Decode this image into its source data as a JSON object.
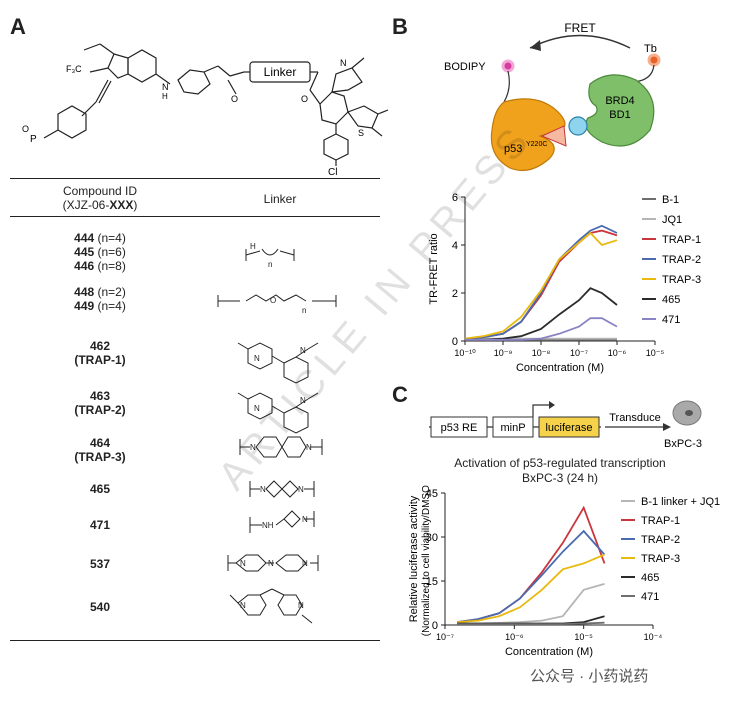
{
  "panels": {
    "a": "A",
    "b": "B",
    "c": "C"
  },
  "structure": {
    "linker_box": "Linker",
    "cf3": "F₃C",
    "p_label": "P",
    "o_label": "O",
    "cl_label": "Cl",
    "nh": "N",
    "h": "H",
    "o": "O",
    "n": "N",
    "s": "S"
  },
  "table": {
    "header_compound": "Compound ID",
    "header_compound_sub_prefix": "(XJZ-06-",
    "header_compound_sub_bold": "XXX",
    "header_compound_sub_suffix": ")",
    "header_linker": "Linker",
    "rows": [
      {
        "lines": [
          [
            "444",
            " (n=4)"
          ],
          [
            "445",
            " (n=6)"
          ],
          [
            "446",
            " (n=8)"
          ]
        ]
      },
      {
        "lines": [
          [
            "448",
            " (n=2)"
          ],
          [
            "449",
            " (n=4)"
          ]
        ]
      },
      {
        "lines": [
          [
            "462",
            ""
          ],
          [
            "(TRAP-1)",
            ""
          ]
        ]
      },
      {
        "lines": [
          [
            "463",
            ""
          ],
          [
            "(TRAP-2)",
            ""
          ]
        ]
      },
      {
        "lines": [
          [
            "464",
            ""
          ],
          [
            "(TRAP-3)",
            ""
          ]
        ]
      },
      {
        "lines": [
          [
            "465",
            ""
          ]
        ]
      },
      {
        "lines": [
          [
            "471",
            ""
          ]
        ]
      },
      {
        "lines": [
          [
            "537",
            ""
          ]
        ]
      },
      {
        "lines": [
          [
            "540",
            ""
          ]
        ]
      }
    ],
    "linker_texts": {
      "alkyl_n": "n",
      "peg_n": "n",
      "h": "H",
      "n": "N",
      "o": "O",
      "nh": "NH"
    }
  },
  "schematic_b": {
    "fret": "FRET",
    "bodipy": "BODIPY",
    "tb": "Tb",
    "brd4": "BRD4",
    "bd1": "BD1",
    "p53": "p53",
    "p53_sup": "Y220C"
  },
  "schematic_c": {
    "p53re": "p53 RE",
    "minp": "minP",
    "luciferase": "luciferase",
    "transduce": "Transduce",
    "cell": "BxPC-3",
    "title_line1": "Activation of p53-regulated transcription",
    "title_line2": "BxPC-3 (24 h)"
  },
  "chart_data": [
    {
      "type": "line",
      "ylabel": "TR-FRET ratio",
      "xlabel": "Concentration (M)",
      "x_scale": "log",
      "xlim": [
        1e-10,
        1e-05
      ],
      "ylim": [
        0,
        6
      ],
      "x_ticks": [
        "10⁻¹⁰",
        "10⁻⁹",
        "10⁻⁸",
        "10⁻⁷",
        "10⁻⁶",
        "10⁻⁵"
      ],
      "y_ticks": [
        0,
        2,
        4,
        6
      ],
      "legend_position": "right",
      "series": [
        {
          "name": "B-1",
          "color": "#6e6e6e",
          "x": [
            1e-10,
            3e-10,
            1e-09,
            3e-09,
            1e-08,
            3e-08,
            1e-07,
            2e-07,
            4e-07,
            1e-06
          ],
          "values": [
            0.05,
            0.05,
            0.05,
            0.05,
            0.05,
            0.05,
            0.05,
            0.05,
            0.05,
            0.05
          ]
        },
        {
          "name": "JQ1",
          "color": "#b5b5b5",
          "x": [
            1e-10,
            3e-10,
            1e-09,
            3e-09,
            1e-08,
            3e-08,
            1e-07,
            2e-07,
            4e-07,
            1e-06
          ],
          "values": [
            0.1,
            0.1,
            0.1,
            0.1,
            0.1,
            0.1,
            0.1,
            0.1,
            0.1,
            0.1
          ]
        },
        {
          "name": "TRAP-1",
          "color": "#c9363b",
          "x": [
            1e-10,
            3e-10,
            1e-09,
            3e-09,
            1e-08,
            3e-08,
            1e-07,
            2e-07,
            4e-07,
            1e-06
          ],
          "values": [
            0.1,
            0.15,
            0.3,
            0.8,
            1.9,
            3.3,
            4.1,
            4.5,
            4.6,
            4.4
          ]
        },
        {
          "name": "TRAP-2",
          "color": "#4a6bb0",
          "x": [
            1e-10,
            3e-10,
            1e-09,
            3e-09,
            1e-08,
            3e-08,
            1e-07,
            2e-07,
            4e-07,
            1e-06
          ],
          "values": [
            0.1,
            0.15,
            0.3,
            0.8,
            2.0,
            3.4,
            4.2,
            4.6,
            4.8,
            4.5
          ]
        },
        {
          "name": "TRAP-3",
          "color": "#e8b90f",
          "x": [
            1e-10,
            3e-10,
            1e-09,
            3e-09,
            1e-08,
            3e-08,
            1e-07,
            2e-07,
            4e-07,
            1e-06
          ],
          "values": [
            0.1,
            0.2,
            0.4,
            1.0,
            2.1,
            3.4,
            4.1,
            4.5,
            4.0,
            4.2
          ]
        },
        {
          "name": "465",
          "color": "#2b2b2b",
          "x": [
            1e-10,
            3e-10,
            1e-09,
            3e-09,
            1e-08,
            3e-08,
            1e-07,
            2e-07,
            4e-07,
            1e-06
          ],
          "values": [
            0.05,
            0.05,
            0.1,
            0.2,
            0.5,
            1.1,
            1.7,
            2.2,
            2.0,
            1.5
          ]
        },
        {
          "name": "471",
          "color": "#8a84c4",
          "x": [
            1e-10,
            3e-10,
            1e-09,
            3e-09,
            1e-08,
            3e-08,
            1e-07,
            2e-07,
            4e-07,
            1e-06
          ],
          "values": [
            0.05,
            0.05,
            0.05,
            0.05,
            0.1,
            0.3,
            0.6,
            0.95,
            0.95,
            0.6
          ]
        }
      ]
    },
    {
      "type": "line",
      "ylabel": "Relative luciferase activity",
      "ylabel2": "(Normalized to cell viability/DMSO)",
      "xlabel": "Concentration (M)",
      "x_scale": "log",
      "xlim": [
        1e-07,
        0.0001
      ],
      "ylim": [
        0,
        45
      ],
      "x_ticks": [
        "10⁻⁷",
        "10⁻⁶",
        "10⁻⁵",
        "10⁻⁴"
      ],
      "y_ticks": [
        0,
        15,
        30,
        45
      ],
      "legend_position": "right",
      "series": [
        {
          "name": "B-1 linker + JQ1",
          "color": "#b5b5b5",
          "x": [
            1.5e-07,
            3e-07,
            6e-07,
            1.2e-06,
            2.5e-06,
            5e-06,
            1e-05,
            2e-05
          ],
          "values": [
            0.5,
            0.5,
            0.7,
            1,
            1.5,
            3,
            12,
            14
          ]
        },
        {
          "name": "TRAP-1",
          "color": "#c9363b",
          "x": [
            1.5e-07,
            3e-07,
            6e-07,
            1.2e-06,
            2.5e-06,
            5e-06,
            1e-05,
            2e-05
          ],
          "values": [
            1,
            2,
            4,
            9,
            18,
            28,
            40,
            21
          ]
        },
        {
          "name": "TRAP-2",
          "color": "#4a6bb0",
          "x": [
            1.5e-07,
            3e-07,
            6e-07,
            1.2e-06,
            2.5e-06,
            5e-06,
            1e-05,
            2e-05
          ],
          "values": [
            1,
            2,
            4,
            9,
            17,
            25,
            32,
            24
          ]
        },
        {
          "name": "TRAP-3",
          "color": "#e8b90f",
          "x": [
            1.5e-07,
            3e-07,
            6e-07,
            1.2e-06,
            2.5e-06,
            5e-06,
            1e-05,
            2e-05
          ],
          "values": [
            1,
            1.5,
            3,
            6,
            12,
            19,
            21,
            24
          ]
        },
        {
          "name": "465",
          "color": "#2b2b2b",
          "x": [
            1.5e-07,
            3e-07,
            6e-07,
            1.2e-06,
            2.5e-06,
            5e-06,
            1e-05,
            2e-05
          ],
          "values": [
            0.5,
            0.5,
            0.5,
            0.5,
            0.5,
            0.5,
            1,
            3
          ]
        },
        {
          "name": "471",
          "color": "#6e6e6e",
          "x": [
            1.5e-07,
            3e-07,
            6e-07,
            1.2e-06,
            2.5e-06,
            5e-06,
            1e-05,
            2e-05
          ],
          "values": [
            0.3,
            0.3,
            0.3,
            0.3,
            0.3,
            0.3,
            0.5,
            0.8
          ]
        }
      ]
    }
  ],
  "watermark": "ARTICLE IN PRESS",
  "footer": "公众号 · 小药说药"
}
